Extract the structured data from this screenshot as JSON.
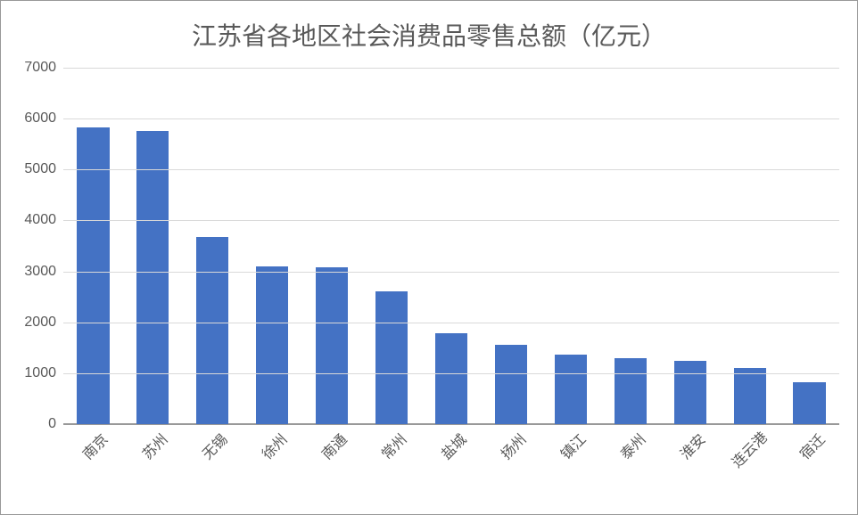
{
  "chart": {
    "type": "bar",
    "title": "江苏省各地区社会消费品零售总额（亿元）",
    "title_fontsize": 28,
    "title_color": "#595959",
    "background_color": "#ffffff",
    "border_color": "#999999",
    "categories": [
      "南京",
      "苏州",
      "无锡",
      "徐州",
      "南通",
      "常州",
      "盐城",
      "扬州",
      "镇江",
      "泰州",
      "淮安",
      "连云港",
      "宿迁"
    ],
    "values": [
      5820,
      5750,
      3680,
      3100,
      3080,
      2600,
      1780,
      1550,
      1360,
      1290,
      1250,
      1100,
      830
    ],
    "bar_color": "#4472c4",
    "bar_width": 0.54,
    "ylim": [
      0,
      7000
    ],
    "ytick_step": 1000,
    "yticks": [
      0,
      1000,
      2000,
      3000,
      4000,
      5000,
      6000,
      7000
    ],
    "grid_color": "#d9d9d9",
    "axis_color": "#999999",
    "label_fontsize": 16,
    "label_color": "#595959",
    "xlabel_rotation": -45,
    "font_family": "SimSun"
  }
}
